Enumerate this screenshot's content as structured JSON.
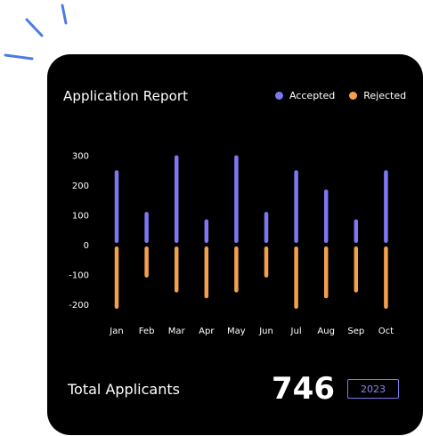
{
  "colors": {
    "accepted": "#7f77f1",
    "rejected": "#f5a04d",
    "card_bg": "#000000",
    "sparkle": "#4d7be6"
  },
  "card": {
    "title": "Application Report",
    "total_label": "Total Applicants",
    "total_value": "746",
    "year": "2023"
  },
  "chart_data": {
    "type": "bar",
    "categories": [
      "Jan",
      "Feb",
      "Mar",
      "Apr",
      "May",
      "Jun",
      "Jul",
      "Aug",
      "Sep",
      "Oct"
    ],
    "series": [
      {
        "name": "Accepted",
        "values": [
          250,
          110,
          300,
          85,
          300,
          110,
          250,
          185,
          85,
          250
        ]
      },
      {
        "name": "Rejected",
        "values": [
          -215,
          -110,
          -160,
          -180,
          -160,
          -110,
          -215,
          -180,
          -160,
          -215
        ]
      }
    ],
    "yticks": [
      300,
      200,
      100,
      0,
      -100,
      -200
    ],
    "ylim": [
      -200,
      300
    ],
    "grid": false,
    "legend_position": "top-right"
  }
}
